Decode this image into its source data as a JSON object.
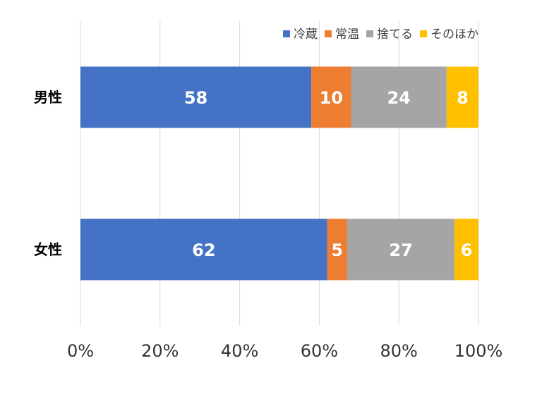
{
  "chart_data": {
    "type": "bar",
    "orientation": "horizontal",
    "stacking": "percent",
    "categories": [
      "男性",
      "女性"
    ],
    "series": [
      {
        "name": "冷蔵",
        "color": "#4472c4",
        "values": [
          58,
          62
        ]
      },
      {
        "name": "常温",
        "color": "#ed7d31",
        "values": [
          10,
          5
        ]
      },
      {
        "name": "捨てる",
        "color": "#a5a5a5",
        "values": [
          24,
          27
        ]
      },
      {
        "name": "そのほか",
        "color": "#ffc000",
        "values": [
          8,
          6
        ]
      }
    ],
    "x_ticks": [
      "0%",
      "20%",
      "40%",
      "60%",
      "80%",
      "100%"
    ],
    "xlim": [
      0,
      100
    ],
    "grid": true,
    "legend_position": "top-right",
    "data_labels": true
  }
}
